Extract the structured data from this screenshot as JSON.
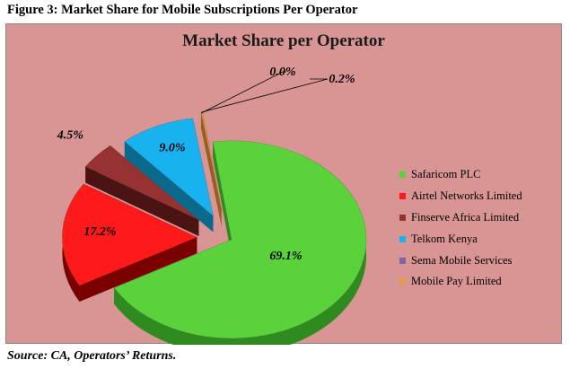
{
  "figure": {
    "caption": "Figure 3: Market Share for Mobile Subscriptions Per Operator",
    "source": "Source: CA, Operators’ Returns."
  },
  "chart_data": {
    "type": "pie",
    "title": "Market Share per Operator",
    "style": "3d-exploded",
    "legend_position": "right",
    "series": [
      {
        "name": "Safaricom PLC",
        "value": 69.1,
        "label": "69.1%",
        "color": "#5ad23c",
        "dark": "#2f8a1f"
      },
      {
        "name": "Airtel Networks Limited",
        "value": 17.2,
        "label": "17.2%",
        "color": "#ff1a1a",
        "dark": "#7a0000"
      },
      {
        "name": "Finserve Africa Limited",
        "value": 4.5,
        "label": "4.5%",
        "color": "#963232",
        "dark": "#4a1414"
      },
      {
        "name": "Telkom Kenya",
        "value": 9.0,
        "label": "9.0%",
        "color": "#19b2f0",
        "dark": "#0b6a8c"
      },
      {
        "name": "Sema Mobile Services",
        "value": 0.0,
        "label": "0.0%",
        "color": "#8064a2",
        "dark": "#4b3a60"
      },
      {
        "name": "Mobile Pay Limited",
        "value": 0.2,
        "label": "0.2%",
        "color": "#e39a4c",
        "dark": "#9a5f20"
      }
    ]
  }
}
